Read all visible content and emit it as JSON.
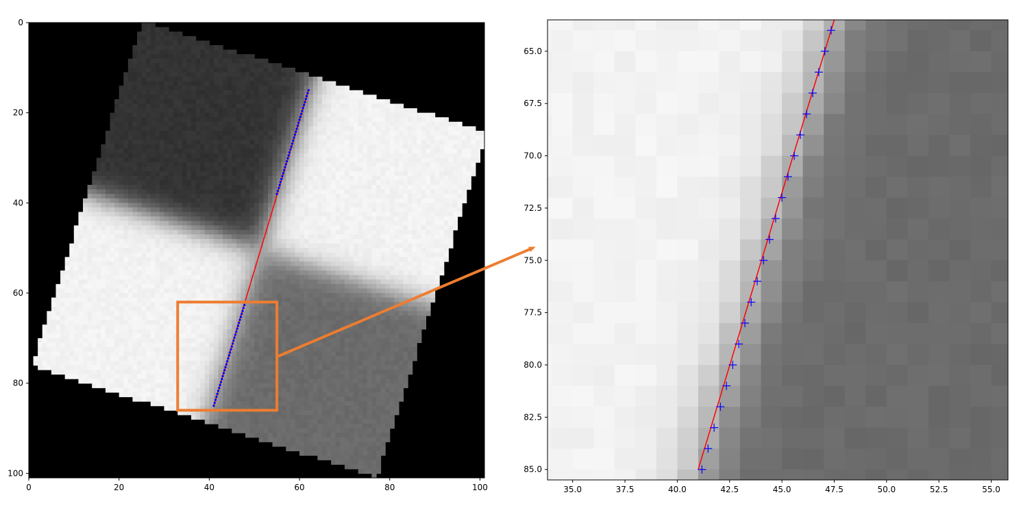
{
  "chart_data": [
    {
      "type": "heatmap",
      "title": "",
      "xlabel": "",
      "ylabel": "",
      "xlim": [
        0,
        101
      ],
      "ylim": [
        101,
        0
      ],
      "x_ticks": [
        0,
        20,
        40,
        60,
        80,
        100
      ],
      "y_ticks": [
        0,
        20,
        40,
        60,
        80,
        100
      ],
      "image": {
        "kind": "rotated-checkerboard",
        "rotation_deg": 22,
        "square_corners": [
          [
            24.5,
            0
          ],
          [
            101,
            24.5
          ],
          [
            79,
            101
          ],
          [
            0,
            75.5
          ]
        ],
        "quadrant_levels": {
          "top": 0.2,
          "right": 0.95,
          "bottom": 0.42,
          "left": 0.95
        },
        "background_level": 0.0
      },
      "fit_line": {
        "x": [
          41,
          62
        ],
        "y": [
          85,
          15
        ],
        "color": "#ff0000"
      },
      "edge_points": {
        "color": "#0000ff",
        "segments": [
          {
            "x_start": 41,
            "y_start": 85,
            "x_end": 48,
            "y_end": 62
          },
          {
            "x_start": 55,
            "y_start": 38,
            "x_end": 62,
            "y_end": 15
          }
        ]
      },
      "zoom_box": {
        "x": [
          33,
          55
        ],
        "y": [
          62,
          86
        ],
        "color": "#ed7d31"
      }
    },
    {
      "type": "heatmap",
      "title": "",
      "xlabel": "",
      "ylabel": "",
      "xlim": [
        33.8,
        55.8
      ],
      "ylim": [
        85.5,
        63.5
      ],
      "x_ticks": [
        "35.0",
        "37.5",
        "40.0",
        "42.5",
        "45.0",
        "47.5",
        "50.0",
        "52.5",
        "55.0"
      ],
      "y_ticks": [
        "65.0",
        "67.5",
        "70.0",
        "72.5",
        "75.0",
        "77.5",
        "80.0",
        "82.5",
        "85.0"
      ],
      "fit_line": {
        "x": [
          41,
          47.5
        ],
        "y": [
          85,
          63.5
        ],
        "color": "#ff0000"
      },
      "edge_markers": {
        "marker": "+",
        "color": "#0000ff",
        "y": [
          64,
          65,
          66,
          67,
          68,
          69,
          70,
          71,
          72,
          73,
          74,
          75,
          76,
          77,
          78,
          79,
          80,
          81,
          82,
          83,
          84,
          85
        ],
        "x": [
          47.35,
          47.05,
          46.76,
          46.47,
          46.18,
          45.88,
          45.59,
          45.29,
          45.0,
          44.7,
          44.41,
          44.12,
          43.82,
          43.53,
          43.23,
          42.94,
          42.65,
          42.35,
          42.06,
          41.76,
          41.47,
          41.18
        ]
      }
    }
  ],
  "arrow": {
    "color": "#ed7d31"
  }
}
